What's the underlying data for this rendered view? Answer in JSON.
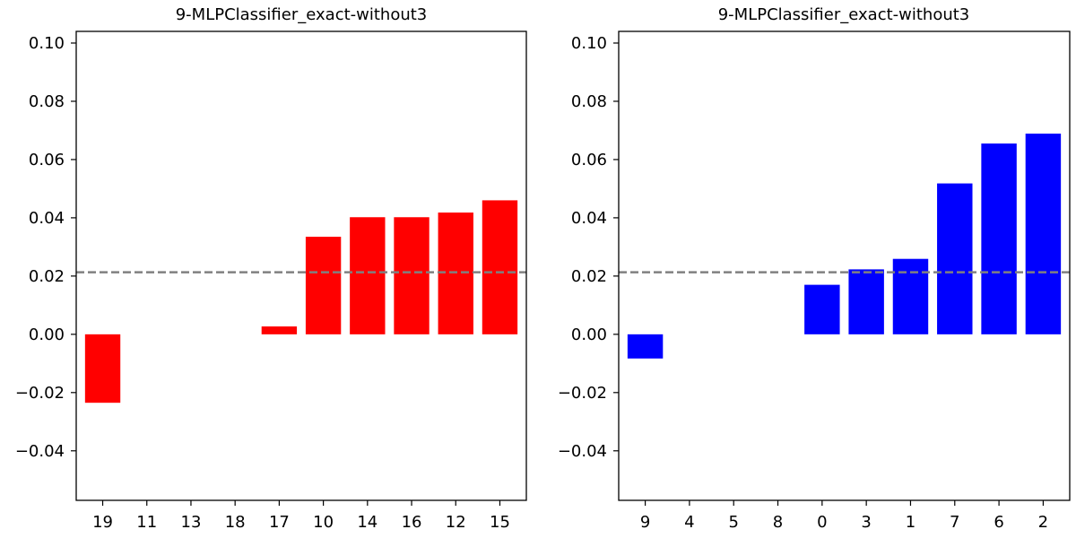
{
  "chart_data": [
    {
      "type": "bar",
      "title": "9-MLPClassifier_exact-without3",
      "categories": [
        "19",
        "11",
        "13",
        "18",
        "17",
        "10",
        "14",
        "16",
        "12",
        "15"
      ],
      "values": [
        -0.0235,
        0.0,
        0.0,
        0.0,
        0.0027,
        0.0335,
        0.0402,
        0.0402,
        0.0418,
        0.046
      ],
      "bar_color": "#ff0000",
      "reference_line": 0.0213,
      "reference_line_color": "#808080",
      "ylim": [
        -0.057,
        0.104
      ],
      "yticks": [
        -0.04,
        -0.02,
        0.0,
        0.02,
        0.04,
        0.06,
        0.08,
        0.1
      ],
      "ytick_labels": [
        "−0.04",
        "−0.02",
        "0.00",
        "0.02",
        "0.04",
        "0.06",
        "0.08",
        "0.10"
      ],
      "xlabel": "",
      "ylabel": "",
      "grid": false
    },
    {
      "type": "bar",
      "title": "9-MLPClassifier_exact-without3",
      "categories": [
        "9",
        "4",
        "5",
        "8",
        "0",
        "3",
        "1",
        "7",
        "6",
        "2"
      ],
      "values": [
        -0.0083,
        0.0,
        0.0,
        0.0,
        0.017,
        0.0223,
        0.0259,
        0.0518,
        0.0655,
        0.0689
      ],
      "bar_color": "#0000ff",
      "reference_line": 0.0213,
      "reference_line_color": "#808080",
      "ylim": [
        -0.057,
        0.104
      ],
      "yticks": [
        -0.04,
        -0.02,
        0.0,
        0.02,
        0.04,
        0.06,
        0.08,
        0.1
      ],
      "ytick_labels": [
        "−0.04",
        "−0.02",
        "0.00",
        "0.02",
        "0.04",
        "0.06",
        "0.08",
        "0.10"
      ],
      "xlabel": "",
      "ylabel": "",
      "grid": false
    }
  ]
}
